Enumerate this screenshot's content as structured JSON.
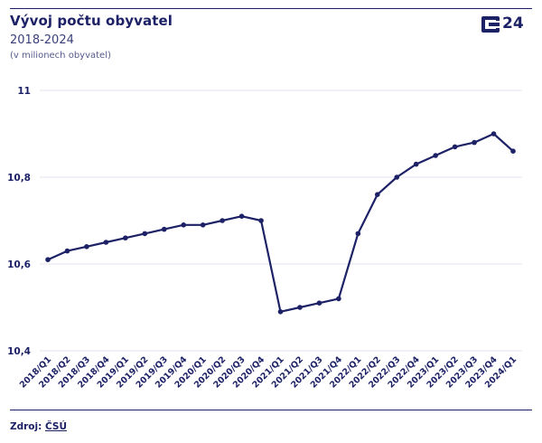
{
  "header": {
    "title": "Vývoj počtu obyvatel",
    "subtitle": "2018-2024",
    "note": "(v milionech obyvatel)",
    "logo_text": "24"
  },
  "footer": {
    "source_label": "Zdroj:",
    "source_link": "ČSÚ"
  },
  "colors": {
    "line": "#1d2166",
    "grid": "#e2e4ec",
    "text": "#1d2166"
  },
  "chart_data": {
    "type": "line",
    "categories": [
      "2018/Q1",
      "2018/Q2",
      "2018/Q3",
      "2018/Q4",
      "2019/Q1",
      "2019/Q2",
      "2019/Q3",
      "2019/Q4",
      "2020/Q1",
      "2020/Q2",
      "2020/Q3",
      "2020/Q4",
      "2021/Q1",
      "2021/Q2",
      "2021/Q3",
      "2021/Q4",
      "2022/Q1",
      "2022/Q2",
      "2022/Q3",
      "2022/Q4",
      "2023/Q1",
      "2023/Q2",
      "2023/Q3",
      "2023/Q4",
      "2024/Q1"
    ],
    "values": [
      10.61,
      10.63,
      10.64,
      10.65,
      10.66,
      10.67,
      10.68,
      10.69,
      10.69,
      10.7,
      10.71,
      10.7,
      10.49,
      10.5,
      10.51,
      10.52,
      10.67,
      10.76,
      10.8,
      10.83,
      10.85,
      10.87,
      10.88,
      10.9,
      10.86
    ],
    "ylim": [
      10.4,
      11
    ],
    "yticks": [
      10.4,
      10.6,
      10.8,
      11
    ],
    "ytick_labels": [
      "10,4",
      "10,6",
      "10,8",
      "11"
    ],
    "grid": true,
    "xlabel": "",
    "ylabel": ""
  }
}
